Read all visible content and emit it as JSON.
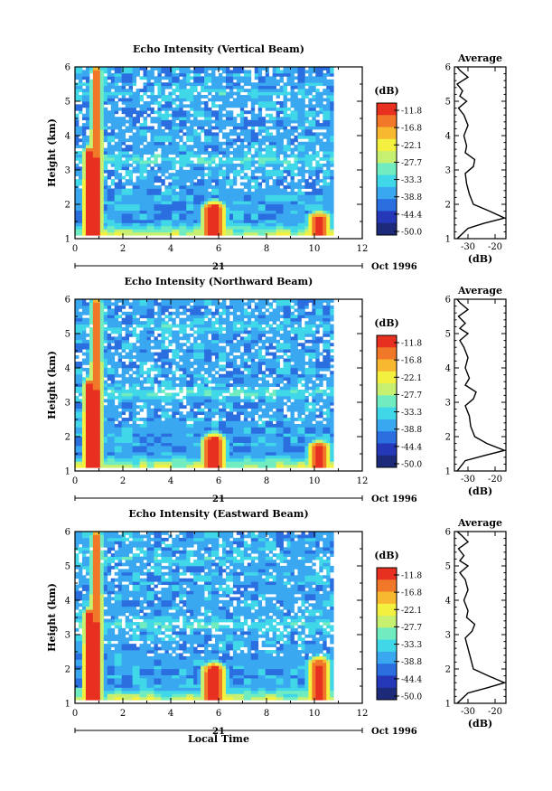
{
  "chart_data": [
    {
      "type": "heatmap",
      "title": "Echo Intensity (Vertical Beam)",
      "ylabel": "Height (km)",
      "xlim": [
        0,
        12
      ],
      "ylim": [
        1,
        6
      ],
      "x_ticks": [
        "0",
        "2",
        "4",
        "6",
        "8",
        "10",
        "12"
      ],
      "y_ticks": [
        "1",
        "2",
        "3",
        "4",
        "5",
        "6"
      ],
      "date_day": "21",
      "date_suffix": "Oct 1996",
      "data_extent_hours": 10.8,
      "plumes": [
        {
          "t": 0.6,
          "h": 3.5,
          "dB": -10
        },
        {
          "t": 0.9,
          "h": 5.9,
          "dB": -12
        },
        {
          "t": 5.8,
          "h": 1.9,
          "dB": -11
        },
        {
          "t": 10.2,
          "h": 1.6,
          "dB": -14
        }
      ],
      "colorbar": {
        "unit": "(dB)",
        "levels": [
          "-11.8",
          "-16.8",
          "-22.1",
          "-27.7",
          "-33.3",
          "-38.8",
          "-44.4",
          "-50.0"
        ]
      },
      "profile": {
        "title": "Average",
        "xlabel": "(dB)",
        "x_ticks": [
          "-30",
          "-20"
        ],
        "xlim": [
          -35,
          -16
        ],
        "ylim": [
          1,
          6
        ],
        "height_km": [
          1.0,
          1.3,
          1.45,
          1.6,
          1.8,
          2.0,
          2.3,
          2.6,
          2.9,
          3.1,
          3.3,
          3.5,
          3.7,
          4.0,
          4.3,
          4.6,
          4.8,
          5.0,
          5.15,
          5.3,
          5.5,
          5.7,
          5.9,
          6.0
        ],
        "dB": [
          -34.0,
          -30.0,
          -24.0,
          -16.5,
          -22.0,
          -28.0,
          -29.5,
          -30.5,
          -31.0,
          -28.0,
          -27.5,
          -31.0,
          -30.5,
          -31.5,
          -30.0,
          -31.5,
          -33.5,
          -30.5,
          -33.0,
          -32.0,
          -34.0,
          -30.0,
          -33.0,
          -34.0
        ]
      }
    },
    {
      "type": "heatmap",
      "title": "Echo Intensity (Northward Beam)",
      "ylabel": "Height (km)",
      "xlim": [
        0,
        12
      ],
      "ylim": [
        1,
        6
      ],
      "x_ticks": [
        "0",
        "2",
        "4",
        "6",
        "8",
        "10",
        "12"
      ],
      "y_ticks": [
        "1",
        "2",
        "3",
        "4",
        "5",
        "6"
      ],
      "date_day": "21",
      "date_suffix": "Oct 1996",
      "data_extent_hours": 10.8,
      "plumes": [
        {
          "t": 0.6,
          "h": 3.5,
          "dB": -10
        },
        {
          "t": 0.9,
          "h": 5.9,
          "dB": -12
        },
        {
          "t": 5.8,
          "h": 1.9,
          "dB": -11
        },
        {
          "t": 10.2,
          "h": 1.7,
          "dB": -14
        }
      ],
      "colorbar": {
        "unit": "(dB)",
        "levels": [
          "-11.8",
          "-16.8",
          "-22.1",
          "-27.7",
          "-33.3",
          "-38.8",
          "-44.4",
          "-50.0"
        ]
      },
      "profile": {
        "title": "Average",
        "xlabel": "(dB)",
        "x_ticks": [
          "-30",
          "-20"
        ],
        "xlim": [
          -35,
          -16
        ],
        "ylim": [
          1,
          6
        ],
        "height_km": [
          1.0,
          1.3,
          1.45,
          1.6,
          1.8,
          2.0,
          2.3,
          2.6,
          2.9,
          3.1,
          3.3,
          3.5,
          3.7,
          4.0,
          4.3,
          4.6,
          4.8,
          5.0,
          5.15,
          5.3,
          5.5,
          5.7,
          5.9,
          6.0
        ],
        "dB": [
          -34.0,
          -31.0,
          -24.0,
          -16.5,
          -23.0,
          -27.5,
          -29.0,
          -29.5,
          -31.0,
          -28.0,
          -27.0,
          -31.0,
          -29.5,
          -31.0,
          -30.0,
          -31.5,
          -33.0,
          -30.0,
          -33.0,
          -31.0,
          -33.5,
          -30.0,
          -33.0,
          -34.0
        ]
      }
    },
    {
      "type": "heatmap",
      "title": "Echo Intensity (Eastward Beam)",
      "ylabel": "Height (km)",
      "xlabel": "Local Time",
      "xlim": [
        0,
        12
      ],
      "ylim": [
        1,
        6
      ],
      "x_ticks": [
        "0",
        "2",
        "4",
        "6",
        "8",
        "10",
        "12"
      ],
      "y_ticks": [
        "1",
        "2",
        "3",
        "4",
        "5",
        "6"
      ],
      "date_day": "21",
      "date_suffix": "Oct 1996",
      "data_extent_hours": 10.8,
      "plumes": [
        {
          "t": 0.6,
          "h": 3.6,
          "dB": -10
        },
        {
          "t": 0.9,
          "h": 5.9,
          "dB": -12
        },
        {
          "t": 5.8,
          "h": 2.0,
          "dB": -11
        },
        {
          "t": 10.2,
          "h": 2.2,
          "dB": -14
        }
      ],
      "colorbar": {
        "unit": "(dB)",
        "levels": [
          "-11.8",
          "-16.8",
          "-22.1",
          "-27.7",
          "-33.3",
          "-38.8",
          "-44.4",
          "-50.0"
        ]
      },
      "profile": {
        "title": "Average",
        "xlabel": "(dB)",
        "x_ticks": [
          "-30",
          "-20"
        ],
        "xlim": [
          -35,
          -16
        ],
        "ylim": [
          1,
          6
        ],
        "height_km": [
          1.0,
          1.3,
          1.45,
          1.6,
          1.8,
          2.0,
          2.3,
          2.6,
          2.9,
          3.1,
          3.3,
          3.5,
          3.7,
          4.0,
          4.3,
          4.6,
          4.8,
          5.0,
          5.15,
          5.3,
          5.5,
          5.7,
          5.9,
          6.0
        ],
        "dB": [
          -34.0,
          -30.0,
          -23.0,
          -16.5,
          -22.5,
          -28.0,
          -29.0,
          -30.0,
          -31.0,
          -28.5,
          -27.5,
          -30.5,
          -30.0,
          -31.5,
          -30.0,
          -31.0,
          -33.0,
          -30.0,
          -33.0,
          -31.5,
          -33.5,
          -30.0,
          -32.5,
          -34.0
        ]
      }
    }
  ],
  "palette": [
    "#1d2a7a",
    "#2438b8",
    "#2a6ee0",
    "#3aa8f0",
    "#40d8e8",
    "#70ecc0",
    "#c8f070",
    "#f4f040",
    "#f8b830",
    "#f07828",
    "#e83020"
  ]
}
